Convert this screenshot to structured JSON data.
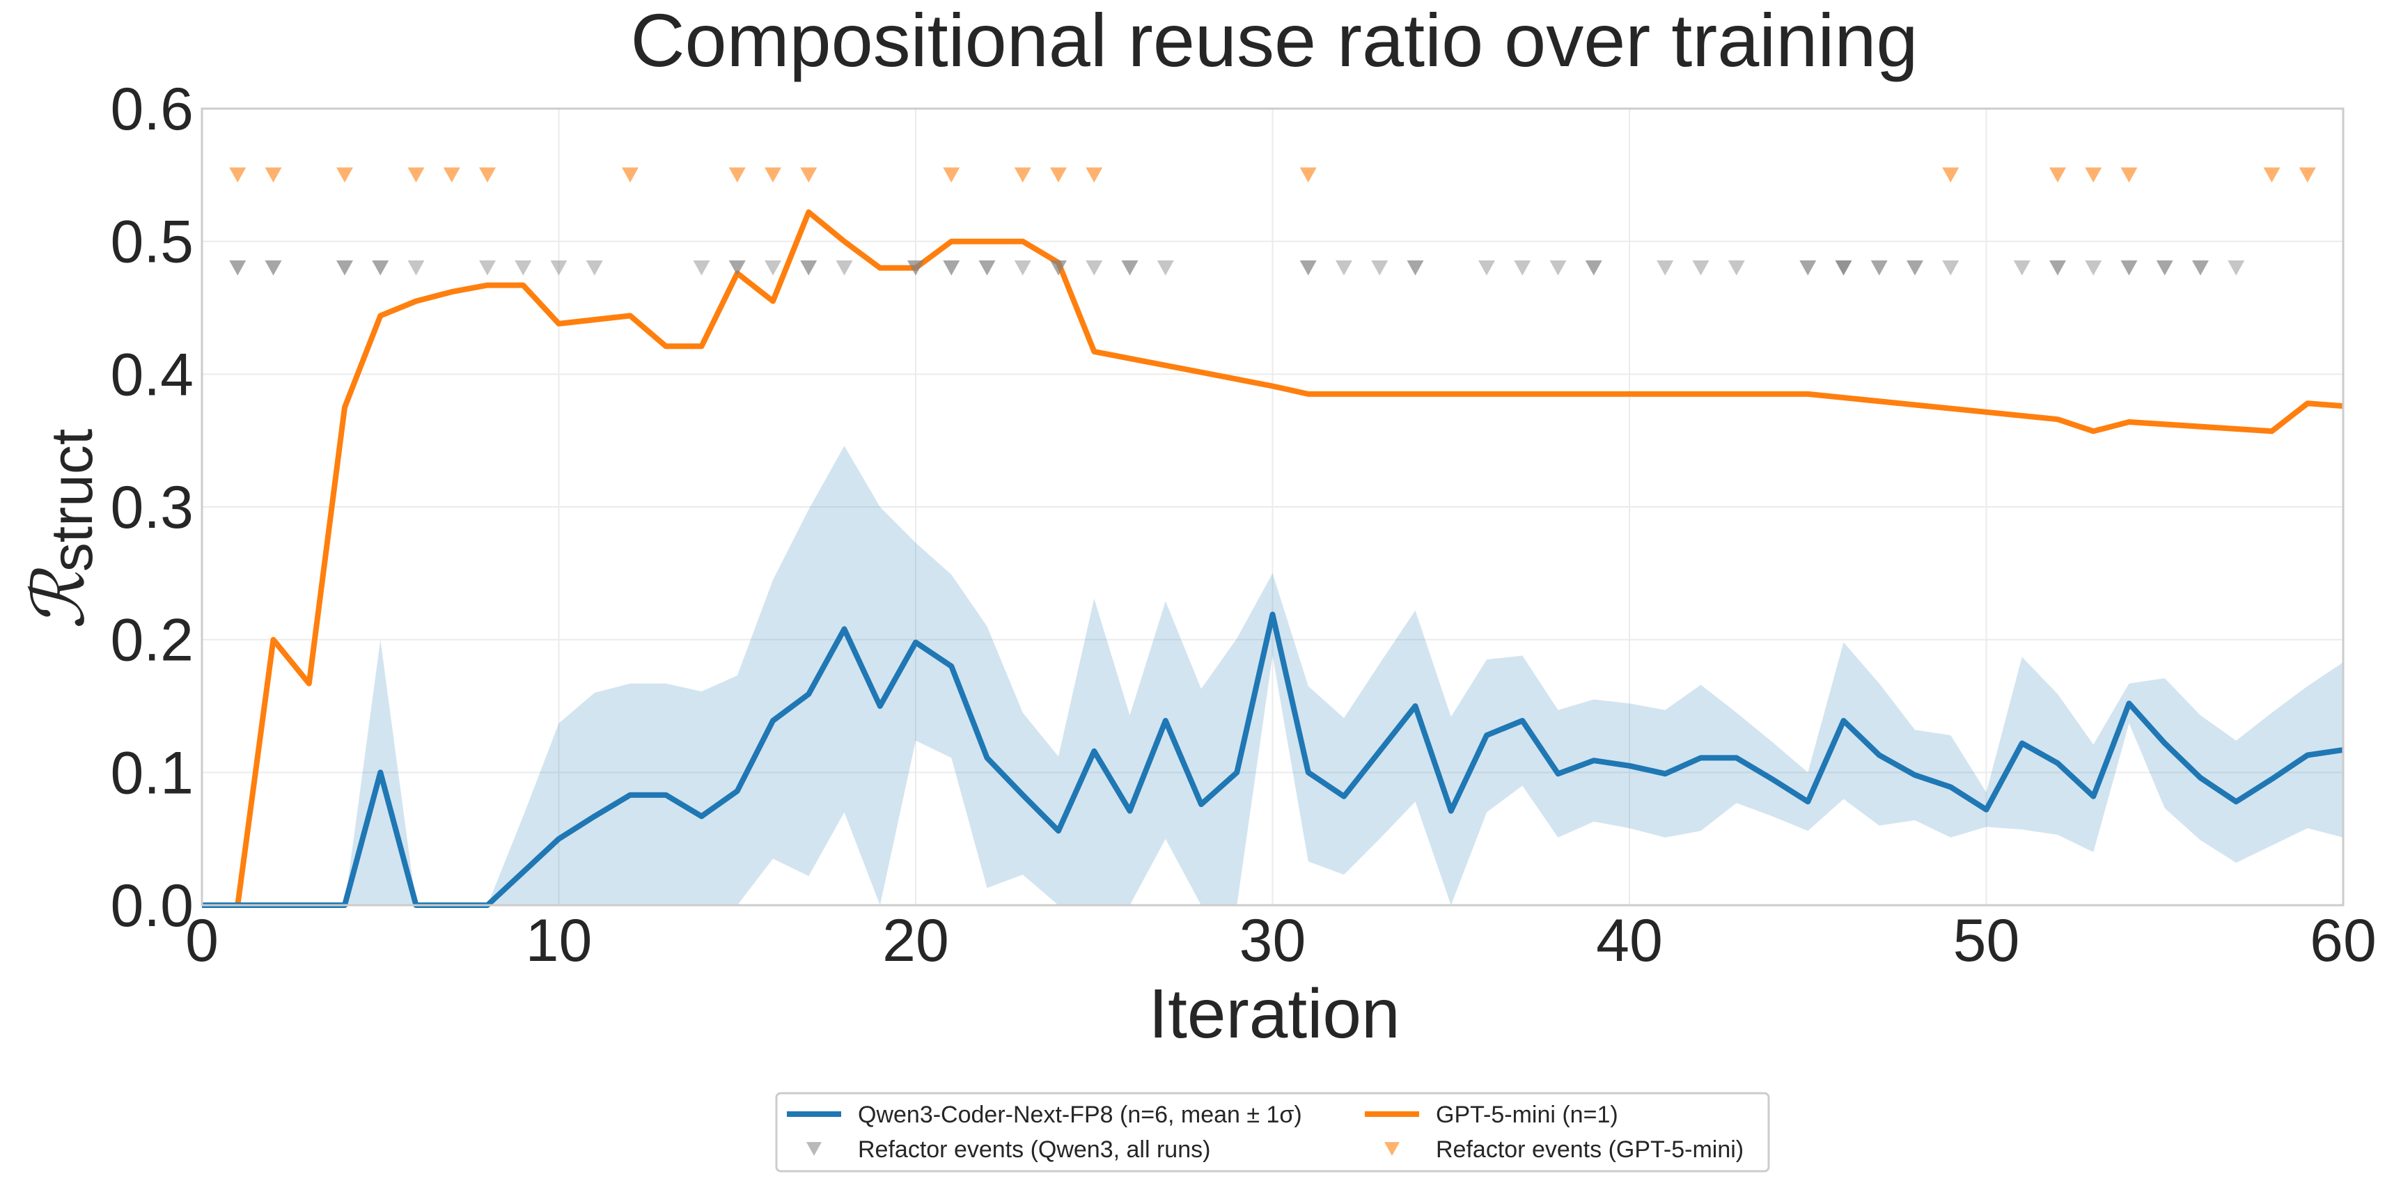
{
  "chart_data": {
    "type": "line",
    "title": "Compositional reuse ratio over training",
    "xlabel": "Iteration",
    "ylabel_main": "ℛ",
    "ylabel_sub": "struct",
    "xlim": [
      0,
      60
    ],
    "ylim": [
      0,
      0.6
    ],
    "xticks": [
      0,
      10,
      20,
      30,
      40,
      50,
      60
    ],
    "yticks": [
      0.0,
      0.1,
      0.2,
      0.3,
      0.4,
      0.5,
      0.6
    ],
    "ytick_labels": [
      "0.0",
      "0.1",
      "0.2",
      "0.3",
      "0.4",
      "0.5",
      "0.6"
    ],
    "grid": true,
    "legend_position": "bottom-center, outside plot",
    "colors": {
      "qwen": "#1f77b4",
      "gpt": "#ff7f0e",
      "qwen_events": "#808080",
      "band": "#1f77b4"
    },
    "series": [
      {
        "name": "Qwen3-Coder-Next-FP8 (n=6, mean ± 1σ)",
        "x": [
          0,
          1,
          2,
          3,
          4,
          5,
          6,
          7,
          8,
          9,
          10,
          11,
          12,
          13,
          14,
          15,
          16,
          17,
          18,
          19,
          20,
          21,
          22,
          23,
          24,
          25,
          26,
          27,
          28,
          29,
          30,
          31,
          32,
          33,
          34,
          35,
          36,
          37,
          38,
          39,
          40,
          41,
          42,
          43,
          44,
          45,
          46,
          47,
          48,
          49,
          50,
          51,
          52,
          53,
          54,
          55,
          56,
          57,
          58,
          59,
          60
        ],
        "y": [
          0,
          0,
          0,
          0,
          0,
          0.1,
          0,
          0,
          0,
          0.025,
          0.05,
          0.067,
          0.083,
          0.083,
          0.067,
          0.086,
          0.139,
          0.159,
          0.208,
          0.15,
          0.198,
          0.18,
          0.111,
          0.083,
          0.056,
          0.116,
          0.071,
          0.139,
          0.076,
          0.1,
          0.219,
          0.1,
          0.082,
          0.116,
          0.15,
          0.071,
          0.128,
          0.139,
          0.099,
          0.109,
          0.105,
          0.099,
          0.111,
          0.111,
          0.095,
          0.078,
          0.139,
          0.113,
          0.098,
          0.089,
          0.072,
          0.122,
          0.107,
          0.082,
          0.152,
          0.122,
          0.096,
          0.078,
          0.095,
          0.113,
          0.117
        ],
        "y_upper": [
          0,
          0,
          0,
          0,
          0,
          0.2,
          0,
          0,
          0,
          0.067,
          0.137,
          0.16,
          0.167,
          0.167,
          0.161,
          0.173,
          0.245,
          0.298,
          0.346,
          0.3,
          0.273,
          0.249,
          0.21,
          0.145,
          0.112,
          0.231,
          0.143,
          0.229,
          0.163,
          0.201,
          0.25,
          0.165,
          0.141,
          0.182,
          0.222,
          0.142,
          0.185,
          0.188,
          0.147,
          0.155,
          0.152,
          0.147,
          0.166,
          0.145,
          0.123,
          0.1,
          0.198,
          0.167,
          0.132,
          0.128,
          0.085,
          0.187,
          0.159,
          0.121,
          0.167,
          0.171,
          0.143,
          0.124,
          0.145,
          0.165,
          0.183
        ],
        "y_lower": [
          0,
          0,
          0,
          0,
          0,
          0,
          0,
          0,
          0,
          0,
          0,
          0,
          0,
          0,
          0,
          0,
          0.035,
          0.022,
          0.07,
          0,
          0.124,
          0.111,
          0.013,
          0.023,
          0,
          0,
          0,
          0.05,
          0,
          0,
          0.188,
          0.033,
          0.023,
          0.05,
          0.078,
          0,
          0.07,
          0.09,
          0.051,
          0.063,
          0.058,
          0.051,
          0.056,
          0.077,
          0.067,
          0.056,
          0.08,
          0.06,
          0.064,
          0.051,
          0.059,
          0.057,
          0.053,
          0.04,
          0.137,
          0.073,
          0.049,
          0.032,
          0.045,
          0.058,
          0.051
        ]
      },
      {
        "name": "GPT-5-mini (n=1)",
        "x": [
          0,
          1,
          2,
          3,
          4,
          5,
          6,
          7,
          8,
          9,
          10,
          12,
          13,
          14,
          15,
          16,
          17,
          18,
          19,
          20,
          21,
          22,
          23,
          24,
          25,
          30,
          31,
          45,
          52,
          53,
          54,
          58,
          59,
          60
        ],
        "y": [
          0,
          0,
          0.2,
          0.167,
          0.375,
          0.444,
          0.455,
          0.462,
          0.467,
          0.467,
          0.438,
          0.444,
          0.421,
          0.421,
          0.476,
          0.455,
          0.522,
          0.5,
          0.48,
          0.48,
          0.5,
          0.5,
          0.5,
          0.484,
          0.417,
          0.391,
          0.385,
          0.385,
          0.366,
          0.357,
          0.364,
          0.357,
          0.378,
          0.376
        ]
      }
    ],
    "events": [
      {
        "name": "Refactor events (Qwen3, all runs)",
        "marker": "triangle-down",
        "y": 0.48,
        "x": [
          1,
          2,
          4,
          5,
          6,
          8,
          9,
          10,
          11,
          14,
          15,
          16,
          17,
          18,
          20,
          21,
          22,
          23,
          24,
          25,
          26,
          27,
          31,
          32,
          33,
          34,
          36,
          37,
          38,
          39,
          41,
          42,
          43,
          45,
          46,
          47,
          48,
          49,
          51,
          52,
          53,
          54,
          55,
          56,
          57
        ],
        "density": [
          2,
          2,
          2,
          2,
          1,
          1,
          1,
          1,
          1,
          1,
          2,
          1,
          2,
          1,
          2,
          2,
          2,
          1,
          2,
          1,
          2,
          1,
          2,
          1,
          1,
          2,
          1,
          1,
          1,
          2,
          1,
          1,
          1,
          2,
          3,
          2,
          2,
          1,
          1,
          2,
          1,
          2,
          2,
          2,
          1
        ]
      },
      {
        "name": "Refactor events (GPT-5-mini)",
        "marker": "triangle-down",
        "y": 0.55,
        "x": [
          1,
          2,
          4,
          6,
          7,
          8,
          12,
          15,
          16,
          17,
          21,
          23,
          24,
          25,
          31,
          49,
          52,
          53,
          54,
          58,
          59
        ]
      }
    ]
  }
}
